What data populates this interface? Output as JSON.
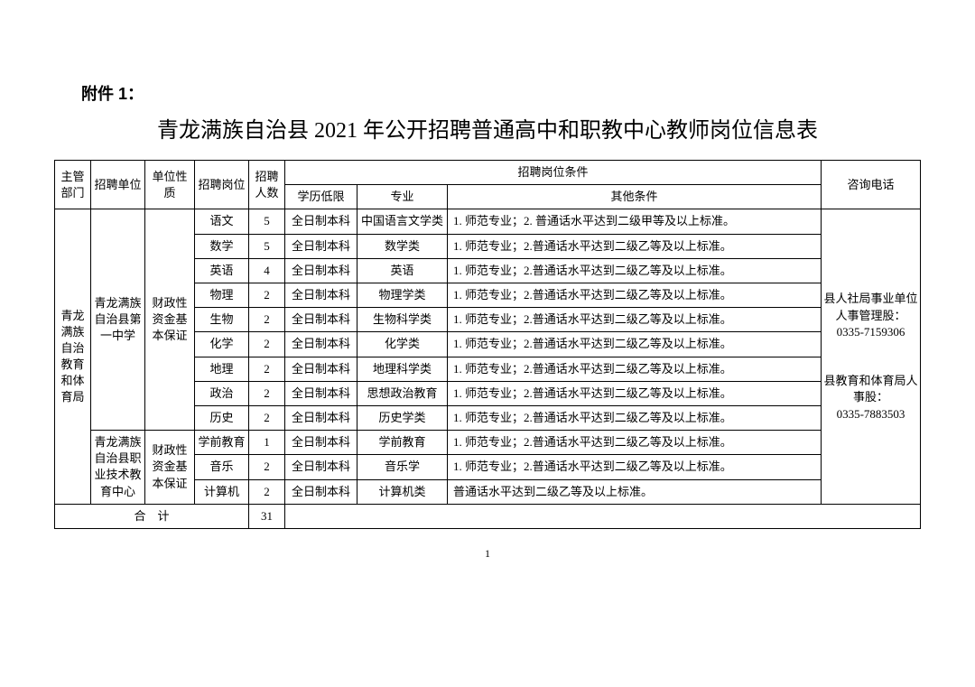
{
  "attachment_label": "附件 1：",
  "title": "青龙满族自治县 2021 年公开招聘普通高中和职教中心教师岗位信息表",
  "headers": {
    "dept": "主管部门",
    "unit": "招聘单位",
    "nature": "单位性质",
    "post": "招聘岗位",
    "count": "招聘人数",
    "conditions": "招聘岗位条件",
    "edu": "学历低限",
    "major": "专业",
    "other": "其他条件",
    "phone": "咨询电话"
  },
  "dept": "青龙满族自治教育和体育局",
  "unit1": "青龙满族自治县第一中学",
  "unit2": "青龙满族自治县职业技术教育中心",
  "nature": "财政性资金基本保证",
  "rows": [
    {
      "post": "语文",
      "count": "5",
      "edu": "全日制本科",
      "major": "中国语言文学类",
      "other": "1. 师范专业；2. 普通话水平达到二级甲等及以上标准。"
    },
    {
      "post": "数学",
      "count": "5",
      "edu": "全日制本科",
      "major": "数学类",
      "other": "1. 师范专业；2.普通话水平达到二级乙等及以上标准。"
    },
    {
      "post": "英语",
      "count": "4",
      "edu": "全日制本科",
      "major": "英语",
      "other": "1. 师范专业；2.普通话水平达到二级乙等及以上标准。"
    },
    {
      "post": "物理",
      "count": "2",
      "edu": "全日制本科",
      "major": "物理学类",
      "other": "1. 师范专业；2.普通话水平达到二级乙等及以上标准。"
    },
    {
      "post": "生物",
      "count": "2",
      "edu": "全日制本科",
      "major": "生物科学类",
      "other": "1. 师范专业；2.普通话水平达到二级乙等及以上标准。"
    },
    {
      "post": "化学",
      "count": "2",
      "edu": "全日制本科",
      "major": "化学类",
      "other": "1. 师范专业；2.普通话水平达到二级乙等及以上标准。"
    },
    {
      "post": "地理",
      "count": "2",
      "edu": "全日制本科",
      "major": "地理科学类",
      "other": "1. 师范专业；2.普通话水平达到二级乙等及以上标准。"
    },
    {
      "post": "政治",
      "count": "2",
      "edu": "全日制本科",
      "major": "思想政治教育",
      "other": "1. 师范专业；2.普通话水平达到二级乙等及以上标准。"
    },
    {
      "post": "历史",
      "count": "2",
      "edu": "全日制本科",
      "major": "历史学类",
      "other": "1. 师范专业；2.普通话水平达到二级乙等及以上标准。"
    },
    {
      "post": "学前教育",
      "count": "1",
      "edu": "全日制本科",
      "major": "学前教育",
      "other": "1. 师范专业；2.普通话水平达到二级乙等及以上标准。"
    },
    {
      "post": "音乐",
      "count": "2",
      "edu": "全日制本科",
      "major": "音乐学",
      "other": "1. 师范专业；2.普通话水平达到二级乙等及以上标准。"
    },
    {
      "post": "计算机",
      "count": "2",
      "edu": "全日制本科",
      "major": "计算机类",
      "other": "普通话水平达到二级乙等及以上标准。"
    }
  ],
  "phone_lines": [
    "县人社局事业单位人事管理股：",
    "0335-7159306",
    "",
    "县教育和体育局人事股：",
    "0335-7883503"
  ],
  "total_label": "合　计",
  "total_count": "31",
  "page_num": "1"
}
